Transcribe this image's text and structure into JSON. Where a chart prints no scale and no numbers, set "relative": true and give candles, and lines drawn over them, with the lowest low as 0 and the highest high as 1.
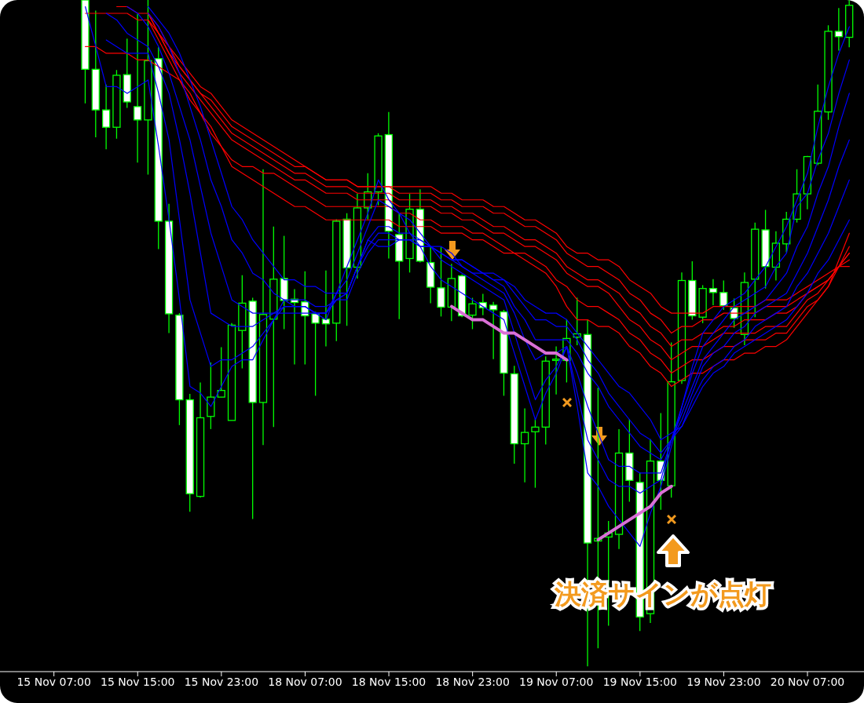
{
  "chart_data": {
    "type": "candlestick",
    "relative": true,
    "color": "#00ff00",
    "categories": [
      "15 Nov 07:00",
      null,
      null,
      null,
      null,
      null,
      null,
      null,
      "15 Nov 15:00",
      null,
      null,
      null,
      null,
      null,
      null,
      null,
      "15 Nov 23:00",
      null,
      null,
      null,
      null,
      null,
      null,
      null,
      "18 Nov 07:00",
      null,
      null,
      null,
      null,
      null,
      null,
      null,
      "18 Nov 15:00",
      null,
      null,
      null,
      null,
      null,
      null,
      null,
      "18 Nov 23:00",
      null,
      null,
      null,
      null,
      null,
      null,
      null,
      "19 Nov 07:00",
      null,
      null,
      null,
      null,
      null,
      null,
      null,
      "19 Nov 15:00",
      null,
      null,
      null,
      null,
      null,
      null,
      null,
      "19 Nov 23:00",
      null,
      null,
      null,
      null,
      null,
      null,
      null,
      "20 Nov 07:00",
      null,
      null,
      null,
      null
    ],
    "ohlc": [
      null,
      null,
      null,
      [
        1,
        1,
        0.845,
        0.896
      ],
      [
        0.896,
        0.984,
        0.794,
        0.835
      ],
      [
        0.835,
        0.873,
        0.776,
        0.809
      ],
      [
        0.809,
        0.895,
        0.792,
        0.887
      ],
      [
        0.888,
        0.942,
        0.838,
        0.847
      ],
      [
        0.84,
        0.979,
        0.756,
        0.82
      ],
      [
        0.82,
        1,
        0.738,
        0.909
      ],
      [
        0.912,
        0.929,
        0.626,
        0.668
      ],
      [
        0.668,
        0.694,
        0.5,
        0.529
      ],
      [
        0.527,
        0.53,
        0.362,
        0.4
      ],
      [
        0.4,
        0.409,
        0.232,
        0.259
      ],
      [
        0.255,
        0.426,
        0.253,
        0.373
      ],
      [
        0.375,
        0.456,
        0.356,
        0.404
      ],
      [
        0.404,
        0.479,
        0.404,
        0.414
      ],
      [
        0.369,
        0.515,
        0.369,
        0.512
      ],
      [
        0.504,
        0.587,
        0.447,
        0.545
      ],
      [
        0.548,
        0.553,
        0.221,
        0.396
      ],
      [
        0.396,
        0.746,
        0.332,
        0.528
      ],
      [
        0.521,
        0.66,
        0.359,
        0.581
      ],
      [
        0.582,
        0.646,
        0.506,
        0.549
      ],
      [
        0.551,
        0.566,
        0.453,
        0.546
      ],
      [
        0.547,
        0.593,
        0.453,
        0.526
      ],
      [
        0.529,
        0.532,
        0.406,
        0.515
      ],
      [
        0.521,
        0.594,
        0.48,
        0.514
      ],
      [
        0.515,
        0.671,
        0.488,
        0.668
      ],
      [
        0.671,
        0.68,
        0.511,
        0.598
      ],
      [
        0.599,
        0.709,
        0.582,
        0.688
      ],
      [
        0.688,
        0.74,
        0.671,
        0.712
      ],
      [
        0.712,
        0.8,
        0.692,
        0.796
      ],
      [
        0.798,
        0.832,
        0.612,
        0.653
      ],
      [
        0.648,
        0.68,
        0.521,
        0.608
      ],
      [
        0.612,
        0.709,
        0.591,
        0.686
      ],
      [
        0.686,
        0.716,
        0.606,
        0.608
      ],
      [
        0.606,
        0.629,
        0.545,
        0.569
      ],
      [
        0.568,
        0.629,
        0.525,
        0.539
      ],
      [
        0.539,
        0.604,
        0.518,
        0.582
      ],
      [
        0.586,
        0.588,
        0.524,
        0.526
      ],
      [
        0.527,
        0.553,
        0.506,
        0.544
      ],
      [
        0.546,
        0.559,
        0.527,
        0.538
      ],
      [
        0.542,
        0.547,
        0.461,
        0.535
      ],
      [
        0.532,
        0.535,
        0.406,
        0.44
      ],
      [
        0.439,
        0.451,
        0.304,
        0.334
      ],
      [
        0.334,
        0.387,
        0.276,
        0.351
      ],
      [
        0.352,
        0.371,
        0.268,
        0.359
      ],
      [
        0.359,
        0.465,
        0.333,
        0.458
      ],
      [
        0.459,
        0.48,
        0.408,
        0.461
      ],
      [
        0.459,
        0.521,
        0.426,
        0.492
      ],
      [
        0.494,
        0.553,
        0.482,
        0.499
      ],
      [
        0.498,
        0.52,
        0,
        0.185
      ],
      [
        0.188,
        0.418,
        0.027,
        0.192
      ],
      [
        0.194,
        0.218,
        0.061,
        0.2
      ],
      [
        0.198,
        0.356,
        0.176,
        0.32
      ],
      [
        0.32,
        0.371,
        0.247,
        0.279
      ],
      [
        0.276,
        0.291,
        0.053,
        0.074
      ],
      [
        0.079,
        0.341,
        0.065,
        0.308
      ],
      [
        0.308,
        0.38,
        0.235,
        0.279
      ],
      [
        0.271,
        0.486,
        0.253,
        0.427
      ],
      [
        0.429,
        0.591,
        0.424,
        0.579
      ],
      [
        0.579,
        0.608,
        0.52,
        0.526
      ],
      [
        0.524,
        0.572,
        0.515,
        0.567
      ],
      [
        0.567,
        0.581,
        0.542,
        0.561
      ],
      [
        0.561,
        0.579,
        0.535,
        0.541
      ],
      [
        0.538,
        0.552,
        0.508,
        0.522
      ],
      [
        0.498,
        0.591,
        0.482,
        0.576
      ],
      [
        0.581,
        0.666,
        0.524,
        0.656
      ],
      [
        0.655,
        0.685,
        0.567,
        0.6
      ],
      [
        0.599,
        0.653,
        0.579,
        0.635
      ],
      [
        0.634,
        0.682,
        0.621,
        0.671
      ],
      [
        0.671,
        0.746,
        0.666,
        0.709
      ],
      [
        0.709,
        0.766,
        0.686,
        0.765
      ],
      [
        0.755,
        0.873,
        0.752,
        0.833
      ],
      [
        0.832,
        0.962,
        0.82,
        0.953
      ],
      [
        0.953,
        0.988,
        0.924,
        0.945
      ],
      [
        0.944,
        1,
        0.929,
        0.992
      ]
    ],
    "series": [
      {
        "type": "line",
        "color": "#ff0000",
        "values": [
          null,
          null,
          null,
          null,
          null,
          null,
          null,
          null,
          null,
          0.98,
          0.96,
          0.93,
          0.91,
          0.89,
          0.87,
          0.86,
          0.84,
          0.82,
          0.81,
          0.8,
          0.79,
          0.78,
          0.77,
          0.76,
          0.75,
          0.74,
          0.73,
          0.73,
          0.73,
          0.72,
          0.72,
          0.72,
          0.72,
          0.72,
          0.72,
          0.72,
          0.72,
          0.71,
          0.71,
          0.7,
          0.7,
          0.7,
          0.69,
          0.69,
          0.68,
          0.67,
          0.67,
          0.66,
          0.65,
          0.63,
          0.62,
          0.62,
          0.61,
          0.61,
          0.6,
          0.58,
          0.57,
          0.56,
          0.54,
          0.53,
          0.53,
          0.53,
          0.53,
          0.54,
          0.54,
          0.54,
          0.54,
          0.54,
          0.55,
          0.55,
          0.55,
          0.56,
          0.57,
          0.58,
          0.59,
          0.6,
          0.6
        ]
      },
      {
        "type": "line",
        "color": "#ff0000",
        "values": [
          null,
          null,
          null,
          null,
          null,
          null,
          null,
          null,
          null,
          0.98,
          0.95,
          0.93,
          0.9,
          0.88,
          0.86,
          0.85,
          0.83,
          0.81,
          0.8,
          0.79,
          0.78,
          0.77,
          0.76,
          0.75,
          0.75,
          0.74,
          0.73,
          0.73,
          0.73,
          0.72,
          0.72,
          0.72,
          0.72,
          0.71,
          0.71,
          0.71,
          0.71,
          0.7,
          0.7,
          0.69,
          0.69,
          0.69,
          0.68,
          0.68,
          0.67,
          0.66,
          0.66,
          0.65,
          0.64,
          0.62,
          0.61,
          0.6,
          0.6,
          0.59,
          0.58,
          0.56,
          0.55,
          0.53,
          0.52,
          0.5,
          0.51,
          0.51,
          0.52,
          0.52,
          0.53,
          0.53,
          0.53,
          0.53,
          0.54,
          0.54,
          0.54,
          0.55,
          0.56,
          0.57,
          0.58,
          0.6,
          0.61
        ]
      },
      {
        "type": "line",
        "color": "#ff0000",
        "values": [
          null,
          null,
          null,
          null,
          null,
          null,
          null,
          null,
          null,
          0.97,
          0.95,
          0.92,
          0.9,
          0.88,
          0.86,
          0.84,
          0.82,
          0.8,
          0.79,
          0.78,
          0.77,
          0.76,
          0.75,
          0.74,
          0.74,
          0.73,
          0.72,
          0.72,
          0.72,
          0.71,
          0.71,
          0.71,
          0.71,
          0.7,
          0.7,
          0.7,
          0.7,
          0.69,
          0.69,
          0.68,
          0.68,
          0.67,
          0.66,
          0.66,
          0.65,
          0.64,
          0.64,
          0.63,
          0.62,
          0.6,
          0.59,
          0.58,
          0.58,
          0.57,
          0.56,
          0.54,
          0.53,
          0.51,
          0.5,
          0.48,
          0.49,
          0.49,
          0.5,
          0.5,
          0.51,
          0.51,
          0.52,
          0.52,
          0.52,
          0.53,
          0.53,
          0.54,
          0.56,
          0.57,
          0.58,
          0.6,
          0.62
        ]
      },
      {
        "type": "line",
        "color": "#ff0000",
        "values": [
          null,
          null,
          null,
          null,
          null,
          null,
          0.99,
          0.99,
          0.98,
          0.98,
          0.95,
          0.92,
          0.89,
          0.87,
          0.85,
          0.83,
          0.81,
          0.79,
          0.78,
          0.77,
          0.76,
          0.75,
          0.74,
          0.73,
          0.73,
          0.72,
          0.71,
          0.71,
          0.71,
          0.7,
          0.7,
          0.7,
          0.7,
          0.69,
          0.69,
          0.69,
          0.69,
          0.68,
          0.68,
          0.67,
          0.67,
          0.66,
          0.65,
          0.65,
          0.64,
          0.63,
          0.63,
          0.62,
          0.61,
          0.59,
          0.58,
          0.57,
          0.57,
          0.56,
          0.54,
          0.52,
          0.51,
          0.49,
          0.48,
          0.46,
          0.47,
          0.48,
          0.48,
          0.49,
          0.5,
          0.5,
          0.5,
          0.5,
          0.51,
          0.51,
          0.51,
          0.53,
          0.55,
          0.56,
          0.58,
          0.6,
          0.62
        ]
      },
      {
        "type": "line",
        "color": "#ff0000",
        "values": [
          null,
          null,
          null,
          0.98,
          0.98,
          0.98,
          0.98,
          0.98,
          0.97,
          0.97,
          0.94,
          0.91,
          0.88,
          0.86,
          0.83,
          0.81,
          0.78,
          0.76,
          0.75,
          0.75,
          0.74,
          0.74,
          0.73,
          0.72,
          0.71,
          0.7,
          0.69,
          0.69,
          0.69,
          0.69,
          0.69,
          0.69,
          0.69,
          0.68,
          0.68,
          0.67,
          0.67,
          0.66,
          0.66,
          0.66,
          0.65,
          0.65,
          0.64,
          0.63,
          0.62,
          0.62,
          0.61,
          0.6,
          0.58,
          0.57,
          0.55,
          0.54,
          0.54,
          0.53,
          0.52,
          0.5,
          0.49,
          0.47,
          0.46,
          0.44,
          0.45,
          0.46,
          0.46,
          0.47,
          0.48,
          0.48,
          0.49,
          0.49,
          0.49,
          0.5,
          0.5,
          0.52,
          0.54,
          0.55,
          0.57,
          0.6,
          0.63
        ]
      },
      {
        "type": "line",
        "color": "#ff0000",
        "values": [
          null,
          null,
          null,
          0.93,
          0.93,
          0.92,
          0.92,
          0.92,
          0.91,
          0.91,
          0.9,
          0.89,
          0.88,
          0.85,
          0.83,
          0.8,
          0.78,
          0.75,
          0.74,
          0.73,
          0.72,
          0.71,
          0.7,
          0.69,
          0.69,
          0.68,
          0.67,
          0.67,
          0.67,
          0.67,
          0.67,
          0.67,
          0.67,
          0.66,
          0.66,
          0.66,
          0.66,
          0.65,
          0.65,
          0.65,
          0.64,
          0.64,
          0.63,
          0.62,
          0.62,
          0.61,
          0.6,
          0.59,
          0.57,
          0.54,
          0.52,
          0.52,
          0.51,
          0.51,
          0.5,
          0.48,
          0.47,
          0.45,
          0.44,
          0.42,
          0.43,
          0.44,
          0.44,
          0.45,
          0.46,
          0.46,
          0.47,
          0.47,
          0.48,
          0.48,
          0.49,
          0.51,
          0.53,
          0.55,
          0.57,
          0.61,
          0.65
        ]
      },
      {
        "type": "line",
        "color": "#0000ff",
        "values": [
          null,
          null,
          null,
          0.99,
          0.93,
          0.87,
          0.87,
          0.86,
          0.87,
          0.88,
          0.78,
          0.67,
          0.55,
          0.42,
          0.41,
          0.39,
          0.42,
          0.45,
          0.46,
          0.46,
          0.49,
          0.52,
          0.55,
          0.54,
          0.54,
          0.53,
          0.52,
          0.56,
          0.6,
          0.64,
          0.68,
          0.73,
          0.7,
          0.68,
          0.65,
          0.63,
          0.6,
          0.58,
          0.57,
          0.56,
          0.55,
          0.54,
          0.53,
          0.52,
          0.47,
          0.42,
          0.37,
          0.41,
          0.44,
          0.48,
          0.39,
          0.29,
          0.27,
          0.24,
          0.22,
          0.2,
          0.18,
          0.23,
          0.27,
          0.33,
          0.39,
          0.45,
          0.5,
          0.52,
          0.54,
          0.55,
          0.56,
          0.58,
          0.6,
          0.63,
          0.66,
          0.7,
          0.74,
          0.81,
          0.87,
          0.92,
          0.96
        ]
      },
      {
        "type": "line",
        "color": "#0000ff",
        "values": [
          null,
          null,
          null,
          null,
          null,
          0.94,
          0.93,
          0.92,
          0.92,
          0.92,
          0.86,
          0.79,
          0.67,
          0.55,
          0.5,
          0.45,
          0.46,
          0.46,
          0.47,
          0.48,
          0.5,
          0.52,
          0.54,
          0.54,
          0.54,
          0.53,
          0.53,
          0.56,
          0.58,
          0.62,
          0.66,
          0.7,
          0.69,
          0.68,
          0.67,
          0.65,
          0.63,
          0.61,
          0.6,
          0.59,
          0.58,
          0.57,
          0.56,
          0.55,
          0.5,
          0.45,
          0.4,
          0.43,
          0.45,
          0.48,
          0.41,
          0.34,
          0.31,
          0.28,
          0.27,
          0.27,
          0.26,
          0.27,
          0.28,
          0.34,
          0.39,
          0.44,
          0.48,
          0.5,
          0.52,
          0.54,
          0.55,
          0.56,
          0.57,
          0.6,
          0.62,
          0.69,
          0.71,
          0.76,
          0.8,
          0.86,
          0.91
        ]
      },
      {
        "type": "line",
        "color": "#0000ff",
        "values": [
          null,
          null,
          null,
          null,
          null,
          0.98,
          0.97,
          0.95,
          0.94,
          0.93,
          0.9,
          0.86,
          0.79,
          0.71,
          0.62,
          0.53,
          0.52,
          0.51,
          0.51,
          0.51,
          0.52,
          0.53,
          0.54,
          0.54,
          0.54,
          0.53,
          0.53,
          0.55,
          0.56,
          0.6,
          0.64,
          0.66,
          0.66,
          0.65,
          0.65,
          0.64,
          0.63,
          0.62,
          0.61,
          0.6,
          0.59,
          0.58,
          0.57,
          0.56,
          0.53,
          0.49,
          0.46,
          0.47,
          0.47,
          0.48,
          0.44,
          0.39,
          0.35,
          0.31,
          0.3,
          0.3,
          0.29,
          0.29,
          0.29,
          0.34,
          0.38,
          0.42,
          0.46,
          0.48,
          0.5,
          0.52,
          0.53,
          0.54,
          0.55,
          0.57,
          0.59,
          0.63,
          0.66,
          0.71,
          0.75,
          0.81,
          0.86
        ]
      },
      {
        "type": "line",
        "color": "#0000ff",
        "values": [
          null,
          null,
          null,
          null,
          null,
          null,
          null,
          0.99,
          0.98,
          0.96,
          0.93,
          0.89,
          0.84,
          0.79,
          0.72,
          0.65,
          0.6,
          0.55,
          0.54,
          0.53,
          0.53,
          0.53,
          0.53,
          0.53,
          0.53,
          0.53,
          0.53,
          0.55,
          0.56,
          0.6,
          0.63,
          0.65,
          0.65,
          0.64,
          0.64,
          0.63,
          0.63,
          0.62,
          0.61,
          0.61,
          0.6,
          0.59,
          0.58,
          0.57,
          0.54,
          0.52,
          0.49,
          0.49,
          0.49,
          0.49,
          0.47,
          0.44,
          0.42,
          0.39,
          0.37,
          0.35,
          0.33,
          0.32,
          0.31,
          0.34,
          0.37,
          0.41,
          0.45,
          0.47,
          0.48,
          0.5,
          0.51,
          0.53,
          0.54,
          0.55,
          0.56,
          0.59,
          0.62,
          0.66,
          0.7,
          0.75,
          0.79
        ]
      },
      {
        "type": "line",
        "color": "#0000ff",
        "values": [
          null,
          null,
          null,
          null,
          null,
          null,
          null,
          null,
          null,
          0.98,
          0.96,
          0.93,
          0.89,
          0.84,
          0.79,
          0.73,
          0.69,
          0.64,
          0.62,
          0.59,
          0.58,
          0.56,
          0.55,
          0.55,
          0.55,
          0.54,
          0.54,
          0.55,
          0.55,
          0.59,
          0.62,
          0.64,
          0.64,
          0.64,
          0.64,
          0.63,
          0.63,
          0.62,
          0.61,
          0.61,
          0.6,
          0.59,
          0.59,
          0.58,
          0.56,
          0.54,
          0.52,
          0.52,
          0.51,
          0.51,
          0.49,
          0.46,
          0.44,
          0.41,
          0.39,
          0.37,
          0.35,
          0.34,
          0.32,
          0.34,
          0.36,
          0.4,
          0.43,
          0.45,
          0.46,
          0.48,
          0.49,
          0.51,
          0.52,
          0.53,
          0.54,
          0.57,
          0.59,
          0.62,
          0.65,
          0.69,
          0.73
        ]
      },
      {
        "type": "line",
        "color": "#0000ff",
        "values": [
          null,
          null,
          null,
          null,
          null,
          null,
          null,
          null,
          null,
          0.99,
          0.97,
          0.95,
          0.92,
          0.88,
          0.84,
          0.79,
          0.74,
          0.69,
          0.67,
          0.64,
          0.62,
          0.6,
          0.58,
          0.58,
          0.57,
          0.57,
          0.56,
          0.56,
          0.56,
          0.6,
          0.64,
          0.63,
          0.63,
          0.64,
          0.64,
          0.64,
          0.63,
          0.63,
          0.62,
          0.6,
          0.59,
          0.59,
          0.58,
          0.58,
          0.57,
          0.55,
          0.54,
          0.53,
          0.53,
          0.52,
          0.5,
          0.48,
          0.46,
          0.44,
          0.42,
          0.41,
          0.39,
          0.37,
          0.34,
          0.35,
          0.36,
          0.39,
          0.42,
          0.44,
          0.45,
          0.47,
          0.48,
          0.49,
          0.5,
          0.51,
          0.52,
          0.54,
          0.56,
          0.59,
          0.61,
          0.64,
          0.67
        ]
      },
      {
        "type": "line",
        "color": "#da70d6",
        "values": [
          null,
          null,
          null,
          null,
          null,
          null,
          null,
          null,
          null,
          null,
          null,
          null,
          null,
          null,
          null,
          null,
          null,
          null,
          null,
          null,
          null,
          null,
          null,
          null,
          null,
          null,
          null,
          null,
          null,
          null,
          null,
          null,
          null,
          null,
          null,
          null,
          null,
          null,
          0.54,
          0.53,
          0.52,
          0.52,
          0.51,
          0.5,
          0.5,
          0.49,
          0.48,
          0.47,
          0.47,
          0.46,
          null,
          null,
          null,
          null,
          null,
          null,
          null,
          null,
          null,
          null,
          null,
          null,
          null,
          null,
          null,
          null,
          null,
          null,
          null,
          null,
          null,
          null,
          null,
          null,
          null,
          null,
          null
        ]
      },
      {
        "type": "line",
        "color": "#da70d6",
        "values": [
          null,
          null,
          null,
          null,
          null,
          null,
          null,
          null,
          null,
          null,
          null,
          null,
          null,
          null,
          null,
          null,
          null,
          null,
          null,
          null,
          null,
          null,
          null,
          null,
          null,
          null,
          null,
          null,
          null,
          null,
          null,
          null,
          null,
          null,
          null,
          null,
          null,
          null,
          null,
          null,
          null,
          null,
          null,
          null,
          null,
          null,
          null,
          null,
          null,
          null,
          null,
          null,
          0.19,
          0.2,
          0.21,
          0.22,
          0.23,
          0.24,
          0.26,
          0.27,
          null,
          null,
          null,
          null,
          null,
          null,
          null,
          null,
          null,
          null,
          null,
          null,
          null,
          null,
          null,
          null,
          null
        ]
      }
    ],
    "annotations": [
      "決済サインが点灯"
    ]
  }
}
